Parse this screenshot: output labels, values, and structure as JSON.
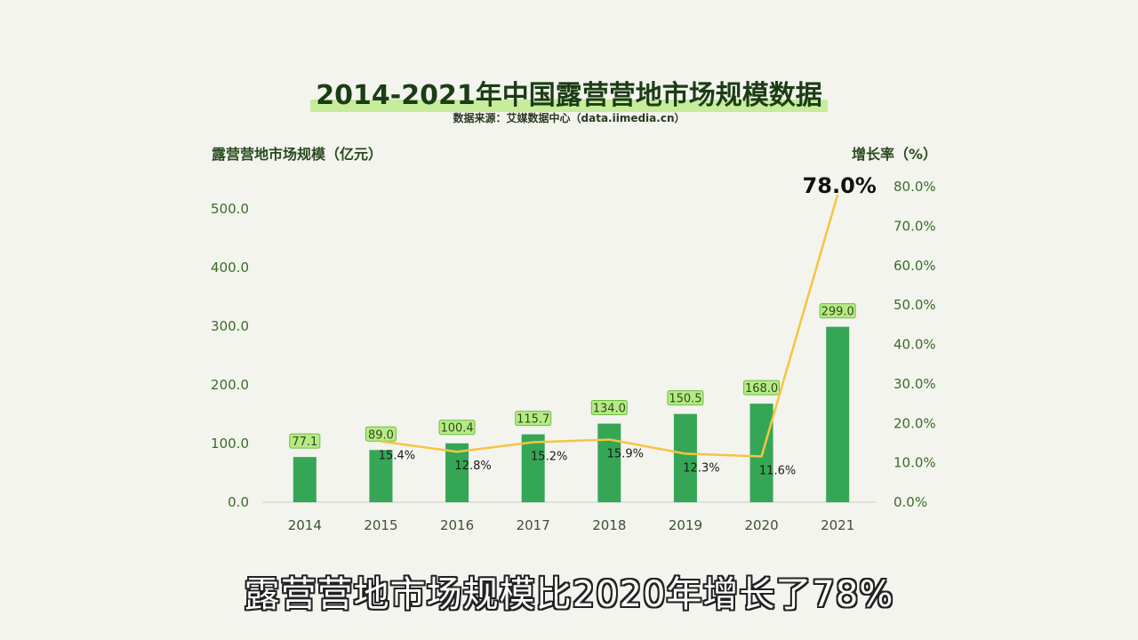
{
  "subtitle": "露营营地市场规模比2020年增长了78%",
  "chart_data": {
    "type": "bar",
    "title": "2014-2021年中国露营营地市场规模数据",
    "source": "数据来源：艾媒数据中心（data.iimedia.cn）",
    "ylabel": "露营营地市场规模（亿元）",
    "y2label": "增长率（%）",
    "categories": [
      "2014",
      "2015",
      "2016",
      "2017",
      "2018",
      "2019",
      "2020",
      "2021"
    ],
    "series": [
      {
        "name": "露营营地市场规模",
        "kind": "bar",
        "values": [
          77.1,
          89.0,
          100.4,
          115.7,
          134.0,
          150.5,
          168.0,
          299.0
        ],
        "labels": [
          "77.1",
          "89.0",
          "100.4",
          "115.7",
          "134.0",
          "150.5",
          "168.0",
          "299.0"
        ]
      },
      {
        "name": "增长率",
        "kind": "line",
        "axis": "right",
        "values": [
          null,
          15.4,
          12.8,
          15.2,
          15.9,
          12.3,
          11.6,
          78.0
        ],
        "labels": [
          "",
          "15.4%",
          "12.8%",
          "15.2%",
          "15.9%",
          "12.3%",
          "11.6%",
          "78.0%"
        ]
      }
    ],
    "ylim": [
      0,
      500
    ],
    "y_ticks": [
      "0.0",
      "100.0",
      "200.0",
      "300.0",
      "400.0",
      "500.0"
    ],
    "y2lim": [
      0,
      80
    ],
    "y2_ticks": [
      "0.0%",
      "10.0%",
      "20.0%",
      "30.0%",
      "40.0%",
      "50.0%",
      "60.0%",
      "70.0%",
      "80.0%"
    ],
    "colors": {
      "bar": "#35a655",
      "label_bg": "#b7ea86",
      "label_border": "#6cbf3f",
      "line": "#f5c542"
    }
  }
}
